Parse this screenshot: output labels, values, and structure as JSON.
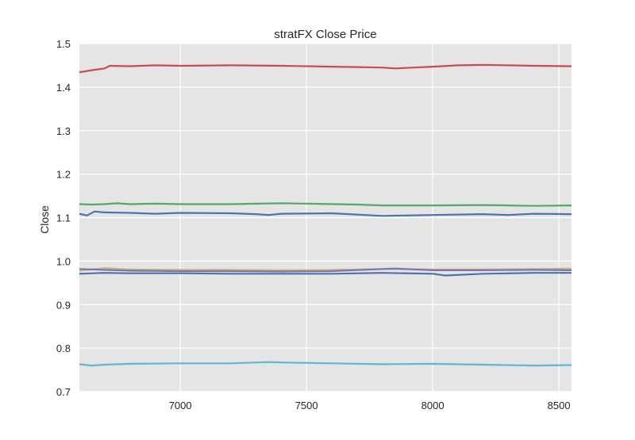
{
  "chart_data": {
    "type": "line",
    "title": "stratFX Close Price",
    "xlabel": "",
    "ylabel": "Close",
    "xlim": [
      6600,
      8550
    ],
    "ylim": [
      0.7,
      1.5
    ],
    "xticks": [
      7000,
      7500,
      8000,
      8500
    ],
    "yticks": [
      0.7,
      0.8,
      0.9,
      1.0,
      1.1,
      1.2,
      1.3,
      1.4,
      1.5
    ],
    "ytick_labels": [
      "0.7",
      "0.8",
      "0.9",
      "1.0",
      "1.1",
      "1.2",
      "1.3",
      "1.4",
      "1.5"
    ],
    "grid": true,
    "legend": "none",
    "background": "#e5e5e5",
    "series": [
      {
        "color": "#c44e52",
        "x": [
          6600,
          6650,
          6700,
          6720,
          6800,
          6900,
          7000,
          7200,
          7400,
          7500,
          7600,
          7700,
          7800,
          7850,
          8000,
          8100,
          8200,
          8300,
          8400,
          8550
        ],
        "values": [
          1.434,
          1.439,
          1.443,
          1.449,
          1.448,
          1.45,
          1.449,
          1.45,
          1.449,
          1.448,
          1.447,
          1.446,
          1.445,
          1.443,
          1.447,
          1.45,
          1.451,
          1.45,
          1.449,
          1.448
        ]
      },
      {
        "color": "#55a868",
        "x": [
          6600,
          6650,
          6700,
          6750,
          6800,
          6900,
          7000,
          7200,
          7400,
          7500,
          7700,
          7800,
          8000,
          8200,
          8300,
          8400,
          8550
        ],
        "values": [
          1.131,
          1.13,
          1.131,
          1.133,
          1.131,
          1.132,
          1.131,
          1.131,
          1.133,
          1.132,
          1.13,
          1.128,
          1.128,
          1.129,
          1.128,
          1.127,
          1.128
        ]
      },
      {
        "color": "#4c72b0",
        "x": [
          6600,
          6630,
          6660,
          6700,
          6800,
          6900,
          7000,
          7200,
          7300,
          7350,
          7400,
          7600,
          7800,
          8000,
          8200,
          8300,
          8400,
          8550
        ],
        "values": [
          1.109,
          1.105,
          1.114,
          1.112,
          1.111,
          1.109,
          1.111,
          1.11,
          1.108,
          1.106,
          1.109,
          1.11,
          1.104,
          1.106,
          1.108,
          1.106,
          1.109,
          1.108
        ]
      },
      {
        "color": "#ccb974",
        "x": [
          6600,
          6700,
          6800,
          7000,
          7200,
          7400,
          7600,
          7800,
          8000,
          8200,
          8400,
          8550
        ],
        "values": [
          0.978,
          0.984,
          0.981,
          0.98,
          0.98,
          0.979,
          0.98,
          0.982,
          0.981,
          0.981,
          0.982,
          0.983
        ]
      },
      {
        "color": "#8172b2",
        "x": [
          6600,
          6700,
          6800,
          7000,
          7200,
          7400,
          7600,
          7850,
          8000,
          8200,
          8400,
          8550
        ],
        "values": [
          0.982,
          0.98,
          0.978,
          0.977,
          0.977,
          0.976,
          0.977,
          0.983,
          0.979,
          0.979,
          0.98,
          0.979
        ]
      },
      {
        "color": "#4c72b0",
        "x": [
          6600,
          6700,
          6800,
          7000,
          7200,
          7400,
          7600,
          7800,
          8000,
          8050,
          8200,
          8400,
          8550
        ],
        "values": [
          0.971,
          0.973,
          0.972,
          0.972,
          0.971,
          0.971,
          0.971,
          0.973,
          0.971,
          0.967,
          0.971,
          0.973,
          0.973
        ]
      },
      {
        "color": "#64b5cd",
        "x": [
          6600,
          6650,
          6700,
          6800,
          7000,
          7200,
          7350,
          7400,
          7600,
          7800,
          8000,
          8200,
          8400,
          8550
        ],
        "values": [
          0.763,
          0.76,
          0.762,
          0.764,
          0.765,
          0.765,
          0.768,
          0.767,
          0.765,
          0.763,
          0.764,
          0.762,
          0.76,
          0.761
        ]
      }
    ]
  }
}
